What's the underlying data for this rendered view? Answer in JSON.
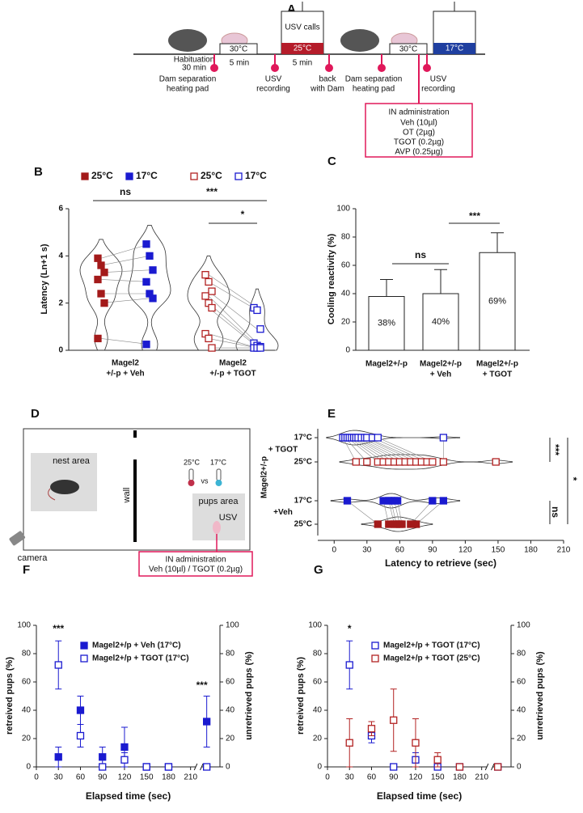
{
  "panel_a": {
    "letter": "A",
    "chamber_label": "USV calls",
    "temperatures": [
      "30°C",
      "25°C",
      "30°C",
      "17°C"
    ],
    "durations": [
      "Habituation",
      "30 min",
      "5 min",
      "5 min"
    ],
    "steps": [
      [
        "Dam separation",
        "heating pad"
      ],
      [
        "USV",
        "recording"
      ],
      [
        "back",
        "with Dam"
      ],
      [
        "Dam separation",
        "heating pad"
      ],
      [
        "USV",
        "recording"
      ]
    ],
    "treatment": {
      "title": "IN administration",
      "doses": [
        "Veh (10µl)",
        "OT (2µg)",
        "TGOT (0.2µg)",
        "AVP (0.25µg)"
      ]
    }
  },
  "panel_d": {
    "letter": "D",
    "nest": "nest area",
    "wall": "wall",
    "temperatures": [
      "25°C",
      "17°C"
    ],
    "versus": "vs",
    "pups": "pups area",
    "usv": "USV",
    "camera": "camera",
    "treatment": {
      "title": "IN administration",
      "doses": "Veh (10µl) / TGOT (0.2µg)"
    }
  },
  "chart_data": [
    {
      "type": "violin",
      "label": "B",
      "ylabel": "Latency (Ln+1 s)",
      "ylim": [
        0,
        6
      ],
      "yticks": [
        0,
        2,
        4,
        6
      ],
      "groups": [
        {
          "category": [
            "Magel2",
            "+/-p + Veh"
          ],
          "series": [
            {
              "name": "25°C",
              "color": "#a31a1a",
              "marker": "filled",
              "values": [
                3.9,
                3.6,
                3.3,
                3.0,
                2.4,
                2.0,
                0.5
              ]
            },
            {
              "name": "17°C",
              "color": "#1a1ad0",
              "marker": "filled",
              "values": [
                4.5,
                4.0,
                3.4,
                2.9,
                2.4,
                2.2,
                0.25
              ]
            }
          ]
        },
        {
          "category": [
            "Magel2",
            "+/-p + TGOT"
          ],
          "series": [
            {
              "name": "25°C",
              "color": "#b22222",
              "marker": "open",
              "values": [
                3.2,
                2.9,
                2.5,
                2.3,
                2.0,
                1.8,
                0.7,
                0.5,
                0.1
              ]
            },
            {
              "name": "17°C",
              "color": "#1a1ad0",
              "marker": "open",
              "values": [
                1.8,
                1.7,
                0.9,
                0.3,
                0.2,
                0.15,
                0.1,
                0.1,
                0.1
              ]
            }
          ]
        }
      ],
      "annotations": [
        "ns",
        "***",
        "*"
      ]
    },
    {
      "type": "bar",
      "label": "C",
      "ylabel": "Cooling reactivity (%)",
      "ylim": [
        0,
        100
      ],
      "yticks": [
        0,
        20,
        40,
        60,
        80,
        100
      ],
      "categories": [
        [
          "Magel2+/-p"
        ],
        [
          "Magel2+/-p",
          "+ Veh"
        ],
        [
          "Magel2+/-p",
          "+ TGOT"
        ]
      ],
      "values": [
        38,
        40,
        69
      ],
      "errors": [
        12,
        17,
        14
      ],
      "value_labels": [
        "38%",
        "40%",
        "69%"
      ],
      "color": "#ffffff",
      "annotations": [
        "ns",
        "***"
      ]
    },
    {
      "type": "violin-horizontal",
      "label": "E",
      "xlabel": "Latency to retrieve (sec)",
      "xlim": [
        -15,
        210
      ],
      "xticks": [
        0,
        30,
        60,
        90,
        120,
        150,
        180,
        210
      ],
      "group_title": "Magel2+/-p",
      "groups": [
        {
          "name": "+ TGOT",
          "series": [
            {
              "name": "17°C",
              "color": "#1a1ad0",
              "marker": "open",
              "values": [
                8,
                10,
                12,
                14,
                16,
                18,
                20,
                22,
                25,
                28,
                30,
                35,
                40,
                100
              ]
            },
            {
              "name": "25°C",
              "color": "#b22222",
              "marker": "open",
              "values": [
                20,
                30,
                40,
                45,
                50,
                55,
                60,
                65,
                70,
                75,
                80,
                85,
                90,
                100,
                148
              ]
            }
          ]
        },
        {
          "name": "+Veh",
          "series": [
            {
              "name": "17°C",
              "color": "#1a1ad0",
              "marker": "filled",
              "values": [
                12,
                45,
                50,
                52,
                55,
                58,
                90,
                100
              ]
            },
            {
              "name": "25°C",
              "color": "#a31a1a",
              "marker": "filled",
              "values": [
                40,
                50,
                55,
                57,
                60,
                62,
                70,
                75
              ]
            }
          ]
        }
      ],
      "annotations": [
        "***",
        "*",
        "ns"
      ]
    },
    {
      "type": "scatter-errorbar",
      "label": "F",
      "xlabel": "Elapsed time (sec)",
      "ylabel": "retreived pups (%)",
      "y2label": "unretrieved pups (%)",
      "xlim": [
        0,
        250
      ],
      "xticks": [
        0,
        30,
        60,
        90,
        120,
        150,
        180,
        210
      ],
      "ylim": [
        0,
        100
      ],
      "yticks": [
        0,
        20,
        40,
        60,
        80,
        100
      ],
      "y2lim": [
        0,
        100
      ],
      "y2ticks": [
        0,
        20,
        40,
        60,
        80,
        100
      ],
      "unretrieved_x": 232,
      "series": [
        {
          "name": "Magel2+/p + Veh (17°C)",
          "color": "#1a1ad0",
          "marker": "filled",
          "x": [
            30,
            60,
            90,
            120,
            150,
            180
          ],
          "values": [
            7,
            40,
            7,
            14,
            0,
            0
          ],
          "errors": [
            7,
            10,
            7,
            14,
            0,
            0
          ],
          "unretrieved": 32,
          "unretrieved_error": 18
        },
        {
          "name": "Magel2+/p + TGOT (17°C)",
          "color": "#1a1ad0",
          "marker": "open",
          "x": [
            30,
            60,
            90,
            120,
            150,
            180
          ],
          "values": [
            72,
            22,
            0,
            5,
            0,
            0
          ],
          "errors": [
            17,
            8,
            0,
            5,
            0,
            0
          ],
          "unretrieved": 0,
          "unretrieved_error": 0
        }
      ],
      "annotations": [
        "***",
        "***"
      ]
    },
    {
      "type": "scatter-errorbar",
      "label": "G",
      "xlabel": "Elapsed time (sec)",
      "ylabel": "retreived pups (%)",
      "y2label": "unretrieved pups (%)",
      "xlim": [
        0,
        250
      ],
      "xticks": [
        0,
        30,
        60,
        90,
        120,
        150,
        180,
        210
      ],
      "ylim": [
        0,
        100
      ],
      "yticks": [
        0,
        20,
        40,
        60,
        80,
        100
      ],
      "y2lim": [
        0,
        100
      ],
      "y2ticks": [
        0,
        20,
        40,
        60,
        80,
        100
      ],
      "unretrieved_x": 232,
      "series": [
        {
          "name": "Magel2+/p + TGOT (17°C)",
          "color": "#1a1ad0",
          "marker": "open",
          "x": [
            30,
            60,
            90,
            120,
            150,
            180
          ],
          "values": [
            72,
            22,
            0,
            5,
            0,
            0
          ],
          "errors": [
            17,
            5,
            0,
            5,
            0,
            0
          ],
          "unretrieved": 0,
          "unretrieved_error": 0
        },
        {
          "name": "Magel2+/p + TGOT (25°C)",
          "color": "#b22222",
          "marker": "open",
          "x": [
            30,
            60,
            90,
            120,
            150,
            180
          ],
          "values": [
            17,
            27,
            33,
            17,
            5,
            0
          ],
          "errors": [
            17,
            5,
            22,
            17,
            5,
            0
          ],
          "unretrieved": 0,
          "unretrieved_error": 0
        }
      ],
      "annotations": [
        "*"
      ]
    }
  ]
}
